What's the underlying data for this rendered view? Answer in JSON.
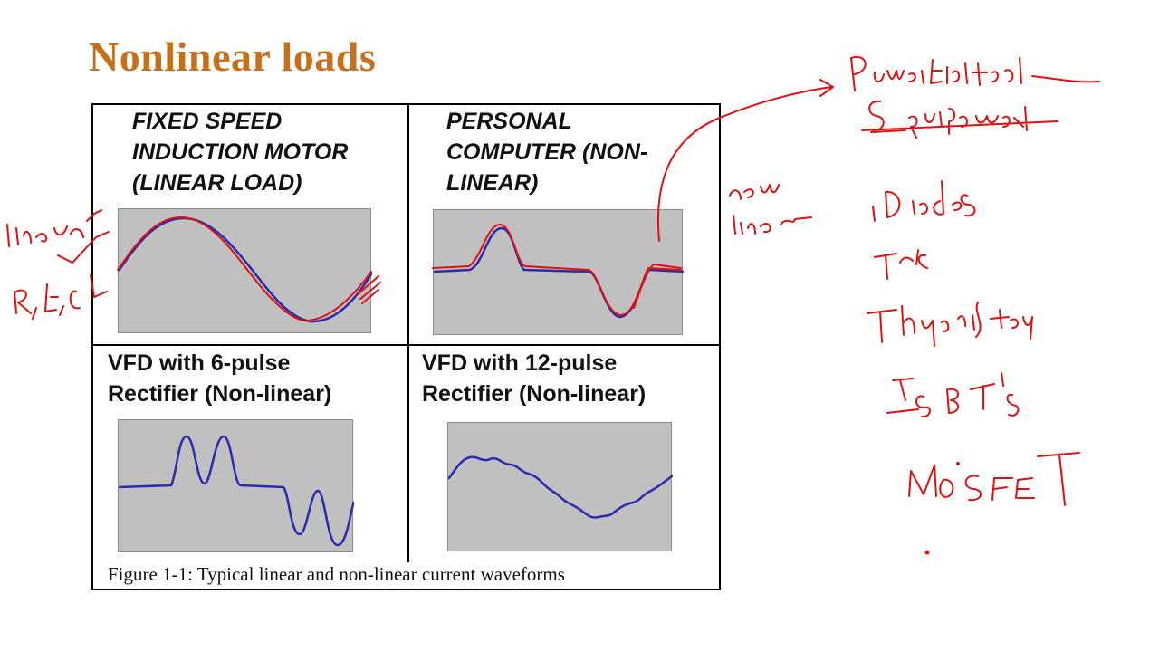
{
  "slide": {
    "title": "Nonlinear loads"
  },
  "figure": {
    "panels": [
      {
        "id": "motor",
        "title": "FIXED SPEED\nINDUCTION MOTOR\n(LINEAR LOAD)",
        "italic": true
      },
      {
        "id": "pc",
        "title": "PERSONAL\nCOMPUTER (NON-\nLINEAR)",
        "italic": true
      },
      {
        "id": "vfd6",
        "title": "VFD with 6-pulse\nRectifier (Non-linear)",
        "italic": false
      },
      {
        "id": "vfd12",
        "title": "VFD with 12-pulse\nRectifier (Non-linear)",
        "italic": false
      }
    ],
    "caption": "Figure 1-1:  Typical linear and non-linear current waveforms"
  },
  "colors": {
    "title": "#c5701a",
    "waveform": "#2b2bb0",
    "plot_bg": "#c0c0c0",
    "annotation": "#e01010"
  }
}
